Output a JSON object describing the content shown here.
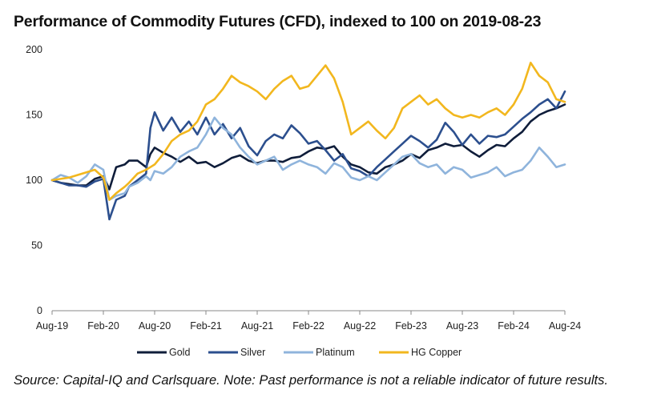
{
  "chart_data": {
    "type": "line",
    "title": "Performance of Commodity Futures (CFD), indexed to 100 on 2019-08-23",
    "xlabel": "",
    "ylabel": "",
    "ylim": [
      0,
      200
    ],
    "yticks": [
      0,
      50,
      100,
      150,
      200
    ],
    "xlim": [
      0,
      60
    ],
    "x_unit": "months since 2019-08-23",
    "xticks": [
      {
        "x": 0,
        "label": "Aug-19"
      },
      {
        "x": 6,
        "label": "Feb-20"
      },
      {
        "x": 12,
        "label": "Aug-20"
      },
      {
        "x": 18,
        "label": "Feb-21"
      },
      {
        "x": 24,
        "label": "Aug-21"
      },
      {
        "x": 30,
        "label": "Feb-22"
      },
      {
        "x": 36,
        "label": "Aug-22"
      },
      {
        "x": 42,
        "label": "Feb-23"
      },
      {
        "x": 48,
        "label": "Aug-23"
      },
      {
        "x": 54,
        "label": "Feb-24"
      },
      {
        "x": 60,
        "label": "Aug-24"
      }
    ],
    "legend_position": "bottom",
    "grid": false,
    "series": [
      {
        "name": "Gold",
        "color": "#0f1d3a",
        "points": [
          [
            0,
            100
          ],
          [
            1,
            98
          ],
          [
            2,
            97
          ],
          [
            3,
            96
          ],
          [
            4,
            96
          ],
          [
            5,
            101
          ],
          [
            6,
            103
          ],
          [
            6.7,
            93
          ],
          [
            7.5,
            110
          ],
          [
            8.5,
            112
          ],
          [
            9,
            115
          ],
          [
            10,
            115
          ],
          [
            11,
            110
          ],
          [
            11.5,
            120
          ],
          [
            12,
            125
          ],
          [
            13,
            121
          ],
          [
            14,
            118
          ],
          [
            15,
            114
          ],
          [
            16,
            118
          ],
          [
            17,
            113
          ],
          [
            18,
            114
          ],
          [
            19,
            110
          ],
          [
            20,
            113
          ],
          [
            21,
            117
          ],
          [
            22,
            119
          ],
          [
            23,
            115
          ],
          [
            24,
            113
          ],
          [
            25,
            115
          ],
          [
            26,
            115
          ],
          [
            27,
            114
          ],
          [
            28,
            117
          ],
          [
            29,
            118
          ],
          [
            30,
            122
          ],
          [
            31,
            125
          ],
          [
            32,
            124
          ],
          [
            33,
            126
          ],
          [
            34,
            118
          ],
          [
            35,
            112
          ],
          [
            36,
            110
          ],
          [
            37,
            106
          ],
          [
            38,
            105
          ],
          [
            39,
            110
          ],
          [
            40,
            112
          ],
          [
            41,
            115
          ],
          [
            42,
            120
          ],
          [
            43,
            117
          ],
          [
            44,
            123
          ],
          [
            45,
            125
          ],
          [
            46,
            128
          ],
          [
            47,
            126
          ],
          [
            48,
            127
          ],
          [
            49,
            122
          ],
          [
            50,
            118
          ],
          [
            51,
            123
          ],
          [
            52,
            127
          ],
          [
            53,
            126
          ],
          [
            54,
            132
          ],
          [
            55,
            137
          ],
          [
            56,
            145
          ],
          [
            57,
            150
          ],
          [
            58,
            153
          ],
          [
            59,
            155
          ],
          [
            60,
            158
          ]
        ]
      },
      {
        "name": "Silver",
        "color": "#2c4f8e",
        "points": [
          [
            0,
            100
          ],
          [
            1,
            98
          ],
          [
            2,
            96
          ],
          [
            3,
            96
          ],
          [
            4,
            95
          ],
          [
            5,
            99
          ],
          [
            6,
            101
          ],
          [
            6.7,
            70
          ],
          [
            7.5,
            85
          ],
          [
            8.5,
            88
          ],
          [
            9,
            95
          ],
          [
            10,
            100
          ],
          [
            11,
            105
          ],
          [
            11.5,
            140
          ],
          [
            12,
            152
          ],
          [
            13,
            138
          ],
          [
            14,
            148
          ],
          [
            15,
            137
          ],
          [
            16,
            145
          ],
          [
            17,
            135
          ],
          [
            18,
            148
          ],
          [
            19,
            135
          ],
          [
            20,
            143
          ],
          [
            21,
            132
          ],
          [
            22,
            140
          ],
          [
            23,
            126
          ],
          [
            24,
            119
          ],
          [
            25,
            130
          ],
          [
            26,
            135
          ],
          [
            27,
            132
          ],
          [
            28,
            142
          ],
          [
            29,
            136
          ],
          [
            30,
            128
          ],
          [
            31,
            130
          ],
          [
            32,
            123
          ],
          [
            33,
            115
          ],
          [
            34,
            120
          ],
          [
            35,
            109
          ],
          [
            36,
            107
          ],
          [
            37,
            103
          ],
          [
            38,
            110
          ],
          [
            39,
            116
          ],
          [
            40,
            122
          ],
          [
            41,
            128
          ],
          [
            42,
            134
          ],
          [
            43,
            130
          ],
          [
            44,
            125
          ],
          [
            45,
            131
          ],
          [
            46,
            144
          ],
          [
            47,
            137
          ],
          [
            48,
            127
          ],
          [
            49,
            135
          ],
          [
            50,
            128
          ],
          [
            51,
            134
          ],
          [
            52,
            133
          ],
          [
            53,
            135
          ],
          [
            54,
            141
          ],
          [
            55,
            147
          ],
          [
            56,
            152
          ],
          [
            57,
            158
          ],
          [
            58,
            162
          ],
          [
            59,
            155
          ],
          [
            60,
            168
          ]
        ]
      },
      {
        "name": "Platinum",
        "color": "#8fb4dc",
        "points": [
          [
            0,
            100
          ],
          [
            1,
            104
          ],
          [
            2,
            102
          ],
          [
            3,
            98
          ],
          [
            4,
            103
          ],
          [
            5,
            112
          ],
          [
            6,
            108
          ],
          [
            6.7,
            85
          ],
          [
            7.5,
            88
          ],
          [
            8.5,
            90
          ],
          [
            9,
            95
          ],
          [
            10,
            98
          ],
          [
            11,
            103
          ],
          [
            11.5,
            100
          ],
          [
            12,
            107
          ],
          [
            13,
            105
          ],
          [
            14,
            110
          ],
          [
            15,
            118
          ],
          [
            16,
            122
          ],
          [
            17,
            125
          ],
          [
            18,
            135
          ],
          [
            19,
            148
          ],
          [
            20,
            140
          ],
          [
            21,
            135
          ],
          [
            22,
            125
          ],
          [
            23,
            118
          ],
          [
            24,
            112
          ],
          [
            25,
            115
          ],
          [
            26,
            118
          ],
          [
            27,
            108
          ],
          [
            28,
            112
          ],
          [
            29,
            115
          ],
          [
            30,
            112
          ],
          [
            31,
            110
          ],
          [
            32,
            105
          ],
          [
            33,
            113
          ],
          [
            34,
            110
          ],
          [
            35,
            102
          ],
          [
            36,
            100
          ],
          [
            37,
            103
          ],
          [
            38,
            100
          ],
          [
            39,
            106
          ],
          [
            40,
            112
          ],
          [
            41,
            118
          ],
          [
            42,
            120
          ],
          [
            43,
            113
          ],
          [
            44,
            110
          ],
          [
            45,
            112
          ],
          [
            46,
            105
          ],
          [
            47,
            110
          ],
          [
            48,
            108
          ],
          [
            49,
            102
          ],
          [
            50,
            104
          ],
          [
            51,
            106
          ],
          [
            52,
            110
          ],
          [
            53,
            103
          ],
          [
            54,
            106
          ],
          [
            55,
            108
          ],
          [
            56,
            115
          ],
          [
            57,
            125
          ],
          [
            58,
            118
          ],
          [
            59,
            110
          ],
          [
            60,
            112
          ]
        ]
      },
      {
        "name": "HG Copper",
        "color": "#f2b71e",
        "points": [
          [
            0,
            100
          ],
          [
            1,
            101
          ],
          [
            2,
            102
          ],
          [
            3,
            104
          ],
          [
            4,
            106
          ],
          [
            5,
            108
          ],
          [
            6,
            102
          ],
          [
            6.7,
            85
          ],
          [
            7.5,
            90
          ],
          [
            8.5,
            95
          ],
          [
            9,
            98
          ],
          [
            10,
            105
          ],
          [
            11,
            108
          ],
          [
            11.5,
            110
          ],
          [
            12,
            112
          ],
          [
            13,
            120
          ],
          [
            14,
            130
          ],
          [
            15,
            135
          ],
          [
            16,
            138
          ],
          [
            17,
            145
          ],
          [
            18,
            158
          ],
          [
            19,
            162
          ],
          [
            20,
            170
          ],
          [
            21,
            180
          ],
          [
            22,
            175
          ],
          [
            23,
            172
          ],
          [
            24,
            168
          ],
          [
            25,
            162
          ],
          [
            26,
            170
          ],
          [
            27,
            176
          ],
          [
            28,
            180
          ],
          [
            29,
            170
          ],
          [
            30,
            172
          ],
          [
            31,
            180
          ],
          [
            32,
            188
          ],
          [
            33,
            178
          ],
          [
            34,
            160
          ],
          [
            35,
            135
          ],
          [
            36,
            140
          ],
          [
            37,
            145
          ],
          [
            38,
            138
          ],
          [
            39,
            132
          ],
          [
            40,
            140
          ],
          [
            41,
            155
          ],
          [
            42,
            160
          ],
          [
            43,
            165
          ],
          [
            44,
            158
          ],
          [
            45,
            162
          ],
          [
            46,
            155
          ],
          [
            47,
            150
          ],
          [
            48,
            148
          ],
          [
            49,
            150
          ],
          [
            50,
            148
          ],
          [
            51,
            152
          ],
          [
            52,
            155
          ],
          [
            53,
            150
          ],
          [
            54,
            158
          ],
          [
            55,
            170
          ],
          [
            56,
            190
          ],
          [
            57,
            180
          ],
          [
            58,
            175
          ],
          [
            59,
            162
          ],
          [
            60,
            160
          ]
        ]
      }
    ]
  },
  "source_note": "Source: Capital-IQ and Carlsquare. Note: Past performance is not a reliable indicator of future results."
}
